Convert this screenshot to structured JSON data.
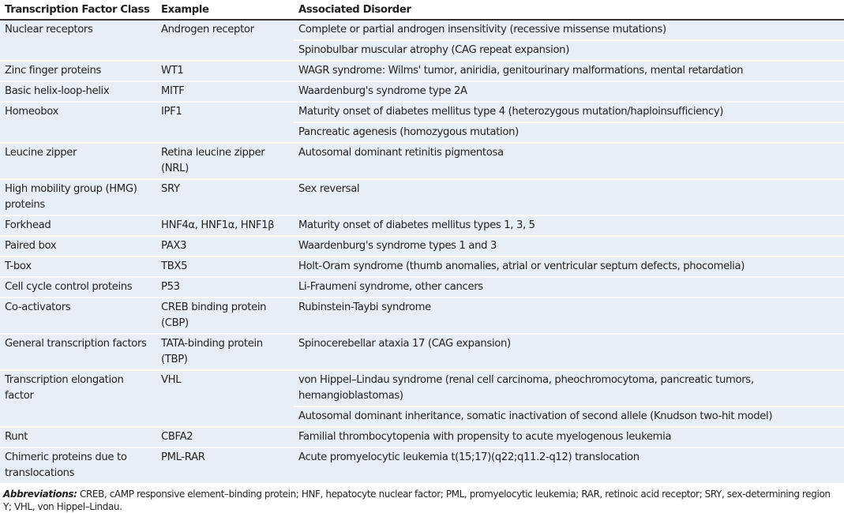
{
  "headers": [
    "Transcription Factor Class",
    "Example",
    "Associated Disorder"
  ],
  "rows": [
    {
      "class": "Nuclear receptors",
      "example": "Androgen receptor",
      "disorders": [
        "Complete or partial androgen insensitivity (recessive missense mutations)",
        "Spinobulbar muscular atrophy (CAG repeat expansion)"
      ]
    },
    {
      "class": "Zinc finger proteins",
      "example": "WT1",
      "disorders": [
        "WAGR syndrome: Wilms' tumor, aniridia, genitourinary malformations, mental retardation"
      ]
    },
    {
      "class": "Basic helix-loop-helix",
      "example": "MITF",
      "disorders": [
        "Waardenburg's syndrome type 2A"
      ]
    },
    {
      "class": "Homeobox",
      "example": "IPF1",
      "disorders": [
        "Maturity onset of diabetes mellitus type 4 (heterozygous mutation/haploinsufficiency)",
        "Pancreatic agenesis (homozygous mutation)"
      ]
    },
    {
      "class": "Leucine zipper",
      "example": "Retina leucine zipper (NRL)",
      "disorders": [
        "Autosomal dominant retinitis pigmentosa"
      ]
    },
    {
      "class": "High mobility group (HMG) proteins",
      "example": "SRY",
      "disorders": [
        "Sex reversal"
      ]
    },
    {
      "class": "Forkhead",
      "example": "HNF4α, HNF1α, HNF1β",
      "disorders": [
        "Maturity onset of diabetes mellitus types 1, 3, 5"
      ]
    },
    {
      "class": "Paired box",
      "example": "PAX3",
      "disorders": [
        "Waardenburg's syndrome types 1 and 3"
      ]
    },
    {
      "class": "T-box",
      "example": "TBX5",
      "disorders": [
        "Holt-Oram syndrome (thumb anomalies, atrial or ventricular septum defects, phocomelia)"
      ]
    },
    {
      "class": "Cell cycle control proteins",
      "example": "P53",
      "disorders": [
        "Li-Fraumeni syndrome, other cancers"
      ]
    },
    {
      "class": "Co-activators",
      "example": "CREB binding protein (CBP)",
      "disorders": [
        "Rubinstein-Taybi syndrome"
      ]
    },
    {
      "class": "General transcription factors",
      "example": "TATA-binding protein (TBP)",
      "disorders": [
        "Spinocerebellar ataxia 17 (CAG expansion)"
      ]
    },
    {
      "class": "Transcription elongation factor",
      "example": "VHL",
      "disorders": [
        "von Hippel–Lindau syndrome (renal cell carcinoma, pheochromocytoma, pancreatic tumors, hemangioblastomas)",
        "Autosomal dominant inheritance, somatic inactivation of second allele (Knudson two-hit model)"
      ]
    },
    {
      "class": "Runt",
      "example": "CBFA2",
      "disorders": [
        "Familial thrombocytopenia with propensity to acute myelogenous leukemia"
      ]
    },
    {
      "class": "Chimeric proteins due to translocations",
      "example": "PML-RAR",
      "disorders": [
        "Acute promyelocytic leukemia t(15;17)(q22;q11.2-q12) translocation"
      ]
    }
  ],
  "footnote": {
    "label": "Abbreviations:",
    "text": "CREB, cAMP responsive element–binding protein; HNF, hepatocyte nuclear factor; PML, promyelocytic leukemia; RAR, retinoic acid receptor; SRY, sex-determining region Y; VHL, von Hippel–Lindau."
  },
  "colors": {
    "row_background": "#e8eef6",
    "header_rule": "#333333"
  }
}
